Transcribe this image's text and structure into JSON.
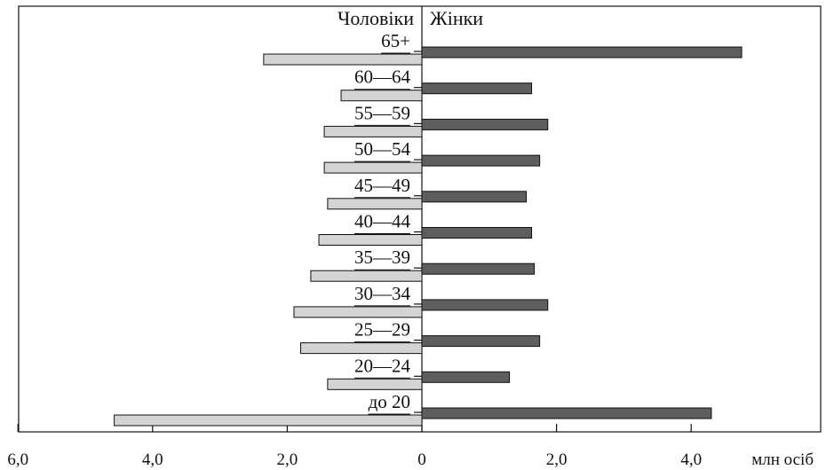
{
  "chart_data": {
    "type": "bar",
    "orientation": "horizontal",
    "layout": "population-pyramid",
    "title": "",
    "xlabel": "млн осіб",
    "ylabel": "",
    "xlim": [
      -6.0,
      6.0
    ],
    "x_ticks": [
      -6,
      -4,
      -2,
      0,
      2,
      4
    ],
    "x_tick_labels": [
      "6,0",
      "4,0",
      "2,0",
      "0",
      "2,0",
      "4,0"
    ],
    "grid": false,
    "categories": [
      "65+",
      "60—64",
      "55—59",
      "50—54",
      "45—49",
      "40—44",
      "35—39",
      "30—34",
      "25—29",
      "20—24",
      "до 20"
    ],
    "series": [
      {
        "name": "Чоловіки",
        "side": "left",
        "color": "#d4d4d4",
        "values": [
          2.35,
          1.2,
          1.45,
          1.45,
          1.4,
          1.53,
          1.65,
          1.9,
          1.8,
          1.4,
          4.57
        ]
      },
      {
        "name": "Жінки",
        "side": "right",
        "color": "#5e5e5e",
        "values": [
          4.75,
          1.63,
          1.87,
          1.75,
          1.55,
          1.63,
          1.67,
          1.87,
          1.75,
          1.3,
          4.3
        ]
      }
    ]
  }
}
